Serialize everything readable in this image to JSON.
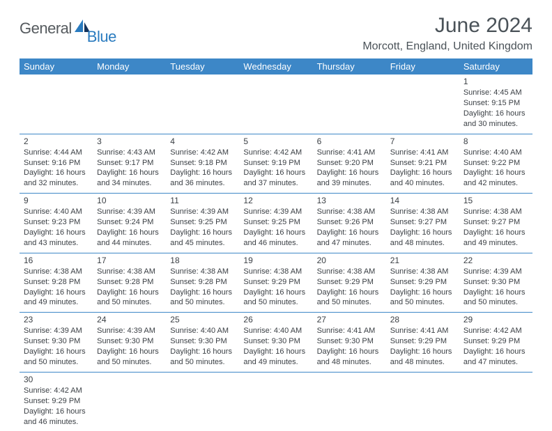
{
  "logo": {
    "general": "General",
    "blue": "Blue"
  },
  "title": "June 2024",
  "location": "Morcott, England, United Kingdom",
  "header_bg": "#3d87c7",
  "weekdays": [
    "Sunday",
    "Monday",
    "Tuesday",
    "Wednesday",
    "Thursday",
    "Friday",
    "Saturday"
  ],
  "weeks": [
    [
      null,
      null,
      null,
      null,
      null,
      null,
      {
        "d": "1",
        "sr": "Sunrise: 4:45 AM",
        "ss": "Sunset: 9:15 PM",
        "dl": "Daylight: 16 hours and 30 minutes."
      }
    ],
    [
      {
        "d": "2",
        "sr": "Sunrise: 4:44 AM",
        "ss": "Sunset: 9:16 PM",
        "dl": "Daylight: 16 hours and 32 minutes."
      },
      {
        "d": "3",
        "sr": "Sunrise: 4:43 AM",
        "ss": "Sunset: 9:17 PM",
        "dl": "Daylight: 16 hours and 34 minutes."
      },
      {
        "d": "4",
        "sr": "Sunrise: 4:42 AM",
        "ss": "Sunset: 9:18 PM",
        "dl": "Daylight: 16 hours and 36 minutes."
      },
      {
        "d": "5",
        "sr": "Sunrise: 4:42 AM",
        "ss": "Sunset: 9:19 PM",
        "dl": "Daylight: 16 hours and 37 minutes."
      },
      {
        "d": "6",
        "sr": "Sunrise: 4:41 AM",
        "ss": "Sunset: 9:20 PM",
        "dl": "Daylight: 16 hours and 39 minutes."
      },
      {
        "d": "7",
        "sr": "Sunrise: 4:41 AM",
        "ss": "Sunset: 9:21 PM",
        "dl": "Daylight: 16 hours and 40 minutes."
      },
      {
        "d": "8",
        "sr": "Sunrise: 4:40 AM",
        "ss": "Sunset: 9:22 PM",
        "dl": "Daylight: 16 hours and 42 minutes."
      }
    ],
    [
      {
        "d": "9",
        "sr": "Sunrise: 4:40 AM",
        "ss": "Sunset: 9:23 PM",
        "dl": "Daylight: 16 hours and 43 minutes."
      },
      {
        "d": "10",
        "sr": "Sunrise: 4:39 AM",
        "ss": "Sunset: 9:24 PM",
        "dl": "Daylight: 16 hours and 44 minutes."
      },
      {
        "d": "11",
        "sr": "Sunrise: 4:39 AM",
        "ss": "Sunset: 9:25 PM",
        "dl": "Daylight: 16 hours and 45 minutes."
      },
      {
        "d": "12",
        "sr": "Sunrise: 4:39 AM",
        "ss": "Sunset: 9:25 PM",
        "dl": "Daylight: 16 hours and 46 minutes."
      },
      {
        "d": "13",
        "sr": "Sunrise: 4:38 AM",
        "ss": "Sunset: 9:26 PM",
        "dl": "Daylight: 16 hours and 47 minutes."
      },
      {
        "d": "14",
        "sr": "Sunrise: 4:38 AM",
        "ss": "Sunset: 9:27 PM",
        "dl": "Daylight: 16 hours and 48 minutes."
      },
      {
        "d": "15",
        "sr": "Sunrise: 4:38 AM",
        "ss": "Sunset: 9:27 PM",
        "dl": "Daylight: 16 hours and 49 minutes."
      }
    ],
    [
      {
        "d": "16",
        "sr": "Sunrise: 4:38 AM",
        "ss": "Sunset: 9:28 PM",
        "dl": "Daylight: 16 hours and 49 minutes."
      },
      {
        "d": "17",
        "sr": "Sunrise: 4:38 AM",
        "ss": "Sunset: 9:28 PM",
        "dl": "Daylight: 16 hours and 50 minutes."
      },
      {
        "d": "18",
        "sr": "Sunrise: 4:38 AM",
        "ss": "Sunset: 9:28 PM",
        "dl": "Daylight: 16 hours and 50 minutes."
      },
      {
        "d": "19",
        "sr": "Sunrise: 4:38 AM",
        "ss": "Sunset: 9:29 PM",
        "dl": "Daylight: 16 hours and 50 minutes."
      },
      {
        "d": "20",
        "sr": "Sunrise: 4:38 AM",
        "ss": "Sunset: 9:29 PM",
        "dl": "Daylight: 16 hours and 50 minutes."
      },
      {
        "d": "21",
        "sr": "Sunrise: 4:38 AM",
        "ss": "Sunset: 9:29 PM",
        "dl": "Daylight: 16 hours and 50 minutes."
      },
      {
        "d": "22",
        "sr": "Sunrise: 4:39 AM",
        "ss": "Sunset: 9:30 PM",
        "dl": "Daylight: 16 hours and 50 minutes."
      }
    ],
    [
      {
        "d": "23",
        "sr": "Sunrise: 4:39 AM",
        "ss": "Sunset: 9:30 PM",
        "dl": "Daylight: 16 hours and 50 minutes."
      },
      {
        "d": "24",
        "sr": "Sunrise: 4:39 AM",
        "ss": "Sunset: 9:30 PM",
        "dl": "Daylight: 16 hours and 50 minutes."
      },
      {
        "d": "25",
        "sr": "Sunrise: 4:40 AM",
        "ss": "Sunset: 9:30 PM",
        "dl": "Daylight: 16 hours and 50 minutes."
      },
      {
        "d": "26",
        "sr": "Sunrise: 4:40 AM",
        "ss": "Sunset: 9:30 PM",
        "dl": "Daylight: 16 hours and 49 minutes."
      },
      {
        "d": "27",
        "sr": "Sunrise: 4:41 AM",
        "ss": "Sunset: 9:30 PM",
        "dl": "Daylight: 16 hours and 48 minutes."
      },
      {
        "d": "28",
        "sr": "Sunrise: 4:41 AM",
        "ss": "Sunset: 9:29 PM",
        "dl": "Daylight: 16 hours and 48 minutes."
      },
      {
        "d": "29",
        "sr": "Sunrise: 4:42 AM",
        "ss": "Sunset: 9:29 PM",
        "dl": "Daylight: 16 hours and 47 minutes."
      }
    ],
    [
      {
        "d": "30",
        "sr": "Sunrise: 4:42 AM",
        "ss": "Sunset: 9:29 PM",
        "dl": "Daylight: 16 hours and 46 minutes."
      },
      null,
      null,
      null,
      null,
      null,
      null
    ]
  ]
}
